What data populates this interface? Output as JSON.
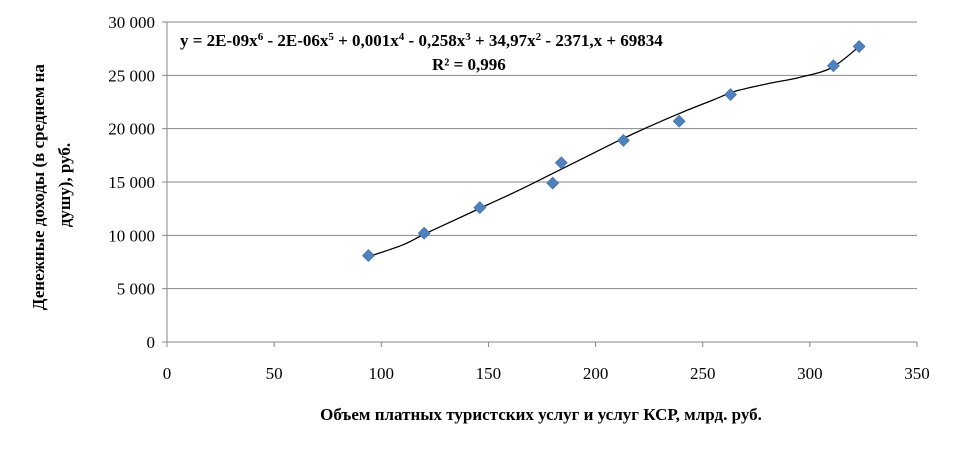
{
  "chart_data": {
    "type": "scatter",
    "xlabel": "Объем платных туристских услуг и услуг КСР, млрд. руб.",
    "ylabel": "Денежные доходы (в среднем на душу), руб.",
    "xlim": [
      0,
      350
    ],
    "ylim": [
      0,
      30000
    ],
    "x_ticks": [
      "0",
      "50",
      "100",
      "150",
      "200",
      "250",
      "300",
      "350"
    ],
    "y_ticks": [
      "0",
      "5 000",
      "10 000",
      "15 000",
      "20 000",
      "25 000",
      "30 000"
    ],
    "x_tick_values": [
      0,
      50,
      100,
      150,
      200,
      250,
      300,
      350
    ],
    "y_tick_values": [
      0,
      5000,
      10000,
      15000,
      20000,
      25000,
      30000
    ],
    "grid": "horizontal",
    "marker_color": "#4F81BD",
    "trend_color": "#000000",
    "points": [
      {
        "x": 94,
        "y": 8100
      },
      {
        "x": 120,
        "y": 10200
      },
      {
        "x": 146,
        "y": 12600
      },
      {
        "x": 180,
        "y": 14900
      },
      {
        "x": 184,
        "y": 16800
      },
      {
        "x": 213,
        "y": 18900
      },
      {
        "x": 239,
        "y": 20700
      },
      {
        "x": 263,
        "y": 23200
      },
      {
        "x": 311,
        "y": 25900
      },
      {
        "x": 323,
        "y": 27700
      }
    ],
    "trendline": {
      "type": "polynomial",
      "order": 6,
      "equation_parts": [
        "y = 2E-09x",
        "6",
        " - 2E-06x",
        "5",
        " + 0,001x",
        "4",
        " - 0,258x",
        "3",
        " + 34,97x",
        "2",
        " - 2371,x + 69834"
      ],
      "r_squared_label": "R² = 0,996",
      "fitted": [
        {
          "x": 94,
          "y": 8000
        },
        {
          "x": 110,
          "y": 9100
        },
        {
          "x": 120,
          "y": 10100
        },
        {
          "x": 135,
          "y": 11500
        },
        {
          "x": 150,
          "y": 12900
        },
        {
          "x": 165,
          "y": 14300
        },
        {
          "x": 180,
          "y": 15800
        },
        {
          "x": 195,
          "y": 17300
        },
        {
          "x": 210,
          "y": 18800
        },
        {
          "x": 225,
          "y": 20200
        },
        {
          "x": 240,
          "y": 21500
        },
        {
          "x": 255,
          "y": 22700
        },
        {
          "x": 265,
          "y": 23500
        },
        {
          "x": 280,
          "y": 24200
        },
        {
          "x": 295,
          "y": 24800
        },
        {
          "x": 310,
          "y": 25700
        },
        {
          "x": 323,
          "y": 27700
        }
      ]
    }
  }
}
